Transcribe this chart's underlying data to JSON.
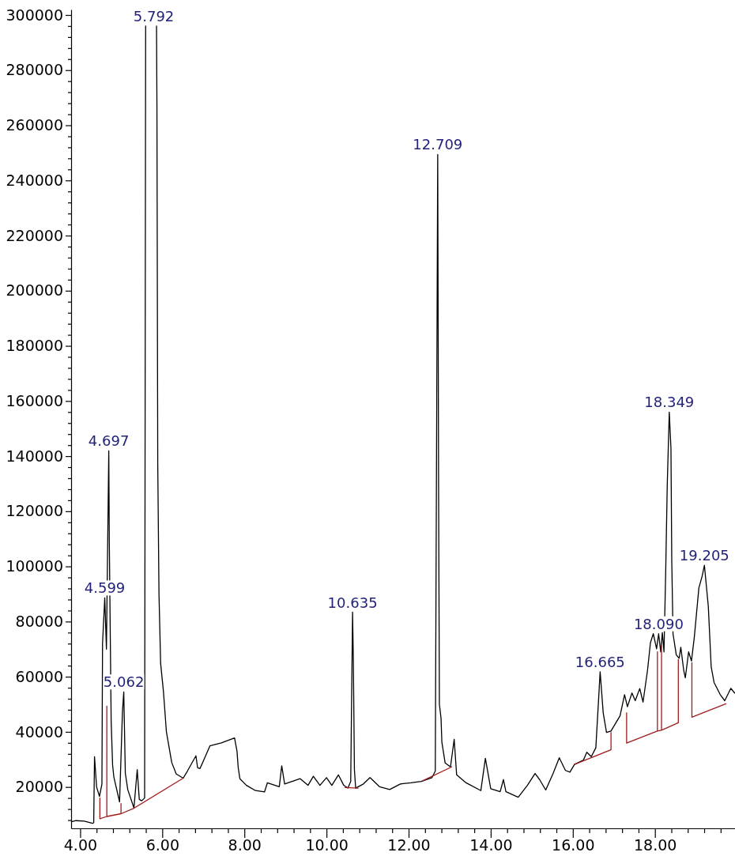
{
  "chart_data": {
    "type": "line",
    "xlim": [
      3.78,
      19.95
    ],
    "ylim": [
      5000,
      302000
    ],
    "xticks": [
      {
        "value": 4,
        "label": "4.00"
      },
      {
        "value": 4.4,
        "label": null
      },
      {
        "value": 4.8,
        "label": null
      },
      {
        "value": 5.2,
        "label": null
      },
      {
        "value": 5.6,
        "label": null
      },
      {
        "value": 6,
        "label": "6.00"
      },
      {
        "value": 6.4,
        "label": null
      },
      {
        "value": 6.8,
        "label": null
      },
      {
        "value": 7.2,
        "label": null
      },
      {
        "value": 7.6,
        "label": null
      },
      {
        "value": 8,
        "label": "8.00"
      },
      {
        "value": 8.4,
        "label": null
      },
      {
        "value": 8.8,
        "label": null
      },
      {
        "value": 9.2,
        "label": null
      },
      {
        "value": 9.6,
        "label": null
      },
      {
        "value": 10,
        "label": "10.00"
      },
      {
        "value": 10.4,
        "label": null
      },
      {
        "value": 10.8,
        "label": null
      },
      {
        "value": 11.2,
        "label": null
      },
      {
        "value": 11.6,
        "label": null
      },
      {
        "value": 12,
        "label": "12.00"
      },
      {
        "value": 12.4,
        "label": null
      },
      {
        "value": 12.8,
        "label": null
      },
      {
        "value": 13.2,
        "label": null
      },
      {
        "value": 13.6,
        "label": null
      },
      {
        "value": 14,
        "label": "14.00"
      },
      {
        "value": 14.4,
        "label": null
      },
      {
        "value": 14.8,
        "label": null
      },
      {
        "value": 15.2,
        "label": null
      },
      {
        "value": 15.6,
        "label": null
      },
      {
        "value": 16,
        "label": "16.00"
      },
      {
        "value": 16.4,
        "label": null
      },
      {
        "value": 16.8,
        "label": null
      },
      {
        "value": 17.2,
        "label": null
      },
      {
        "value": 17.6,
        "label": null
      },
      {
        "value": 18,
        "label": "18.00"
      },
      {
        "value": 18.4,
        "label": null
      },
      {
        "value": 18.8,
        "label": null
      },
      {
        "value": 19.2,
        "label": null
      },
      {
        "value": 19.6,
        "label": null
      }
    ],
    "yticks": [
      {
        "value": 8000,
        "label": null
      },
      {
        "value": 12000,
        "label": null
      },
      {
        "value": 16000,
        "label": null
      },
      20000,
      {
        "value": 24000,
        "label": null
      },
      {
        "value": 28000,
        "label": null
      },
      {
        "value": 32000,
        "label": null
      },
      {
        "value": 36000,
        "label": null
      },
      40000,
      {
        "value": 44000,
        "label": null
      },
      {
        "value": 48000,
        "label": null
      },
      {
        "value": 52000,
        "label": null
      },
      {
        "value": 56000,
        "label": null
      },
      60000,
      {
        "value": 64000,
        "label": null
      },
      {
        "value": 68000,
        "label": null
      },
      {
        "value": 72000,
        "label": null
      },
      {
        "value": 76000,
        "label": null
      },
      80000,
      {
        "value": 84000,
        "label": null
      },
      {
        "value": 88000,
        "label": null
      },
      {
        "value": 92000,
        "label": null
      },
      {
        "value": 96000,
        "label": null
      },
      100000,
      {
        "value": 104000,
        "label": null
      },
      {
        "value": 108000,
        "label": null
      },
      {
        "value": 112000,
        "label": null
      },
      {
        "value": 116000,
        "label": null
      },
      120000,
      {
        "value": 124000,
        "label": null
      },
      {
        "value": 128000,
        "label": null
      },
      {
        "value": 132000,
        "label": null
      },
      {
        "value": 136000,
        "label": null
      },
      140000,
      {
        "value": 144000,
        "label": null
      },
      {
        "value": 148000,
        "label": null
      },
      {
        "value": 152000,
        "label": null
      },
      {
        "value": 156000,
        "label": null
      },
      160000,
      {
        "value": 164000,
        "label": null
      },
      {
        "value": 168000,
        "label": null
      },
      {
        "value": 172000,
        "label": null
      },
      {
        "value": 176000,
        "label": null
      },
      180000,
      {
        "value": 184000,
        "label": null
      },
      {
        "value": 188000,
        "label": null
      },
      {
        "value": 192000,
        "label": null
      },
      {
        "value": 196000,
        "label": null
      },
      200000,
      {
        "value": 204000,
        "label": null
      },
      {
        "value": 208000,
        "label": null
      },
      {
        "value": 212000,
        "label": null
      },
      {
        "value": 216000,
        "label": null
      },
      220000,
      {
        "value": 224000,
        "label": null
      },
      {
        "value": 228000,
        "label": null
      },
      {
        "value": 232000,
        "label": null
      },
      {
        "value": 236000,
        "label": null
      },
      240000,
      {
        "value": 244000,
        "label": null
      },
      {
        "value": 248000,
        "label": null
      },
      {
        "value": 252000,
        "label": null
      },
      {
        "value": 256000,
        "label": null
      },
      260000,
      {
        "value": 264000,
        "label": null
      },
      {
        "value": 268000,
        "label": null
      },
      {
        "value": 272000,
        "label": null
      },
      {
        "value": 276000,
        "label": null
      },
      280000,
      {
        "value": 284000,
        "label": null
      },
      {
        "value": 288000,
        "label": null
      },
      {
        "value": 292000,
        "label": null
      },
      {
        "value": 296000,
        "label": null
      },
      300000
    ],
    "series": [
      {
        "color": "#000000",
        "x": [
          3.79,
          3.9,
          4.1,
          4.3,
          4.33,
          4.35,
          4.4,
          4.47,
          4.53,
          4.545,
          4.599,
          4.64,
          4.697,
          4.71,
          4.755,
          4.79,
          4.82,
          4.86,
          4.96,
          5.03,
          5.062,
          5.1,
          5.16,
          5.31,
          5.39,
          5.44,
          5.5,
          5.57,
          5.595,
          5.72,
          5.86,
          5.87,
          5.89,
          5.92,
          5.96,
          6.03,
          6.1,
          6.23,
          6.34,
          6.51,
          6.61,
          6.82,
          6.86,
          6.92,
          7.16,
          7.44,
          7.76,
          7.82,
          7.85,
          7.89,
          8.05,
          8.27,
          8.49,
          8.56,
          8.85,
          8.91,
          8.98,
          9.36,
          9.55,
          9.68,
          9.84,
          10,
          10.13,
          10.29,
          10.42,
          10.52,
          10.59,
          10.635,
          10.655,
          10.68,
          10.71,
          10.9,
          11.06,
          11.29,
          11.54,
          11.8,
          12.06,
          12.31,
          12.57,
          12.65,
          12.709,
          12.73,
          12.75,
          12.79,
          12.81,
          12.89,
          13.02,
          13.11,
          13.17,
          13.4,
          13.76,
          13.87,
          14,
          14.23,
          14.31,
          14.37,
          14.67,
          14.89,
          15.08,
          15.19,
          15.34,
          15.52,
          15.67,
          15.82,
          15.93,
          16.04,
          16.26,
          16.34,
          16.45,
          16.56,
          16.63,
          16.665,
          16.74,
          16.82,
          16.93,
          17.15,
          17.26,
          17.33,
          17.44,
          17.52,
          17.63,
          17.71,
          17.82,
          17.89,
          17.96,
          18.04,
          18.09,
          18.14,
          18.18,
          18.22,
          18.26,
          18.3,
          18.349,
          18.39,
          18.41,
          18.44,
          18.52,
          18.59,
          18.63,
          18.7,
          18.74,
          18.82,
          18.89,
          18.96,
          19.07,
          19.15,
          19.205,
          19.3,
          19.37,
          19.44,
          19.59,
          19.7,
          19.85,
          19.94
        ],
        "values": [
          7400,
          7800,
          7600,
          6800,
          7000,
          31000,
          20000,
          16600,
          21000,
          72000,
          88600,
          70000,
          141900,
          109000,
          44000,
          28000,
          23700,
          21000,
          14600,
          47200,
          54500,
          25000,
          19000,
          12400,
          26300,
          15500,
          15000,
          16000,
          296000,
          null,
          296000,
          266600,
          137000,
          90000,
          64800,
          54400,
          40100,
          28900,
          24700,
          23200,
          25700,
          31300,
          27000,
          26700,
          34900,
          36000,
          37800,
          33000,
          27000,
          23000,
          20600,
          18700,
          18200,
          21500,
          20100,
          27700,
          21100,
          23000,
          20600,
          23900,
          20600,
          23400,
          20600,
          24400,
          20600,
          19600,
          22000,
          83400,
          65000,
          26300,
          19600,
          21100,
          23400,
          20100,
          19100,
          21100,
          21500,
          22000,
          23400,
          25800,
          249400,
          130000,
          50000,
          44900,
          36300,
          28700,
          27300,
          37300,
          24400,
          21500,
          18700,
          30400,
          19400,
          18300,
          22700,
          18300,
          16300,
          20500,
          24900,
          22700,
          18900,
          24900,
          30600,
          26000,
          25400,
          28200,
          29800,
          32600,
          31000,
          34200,
          52400,
          61800,
          46900,
          39800,
          40300,
          45800,
          53500,
          49100,
          54100,
          51300,
          55700,
          50800,
          62400,
          72300,
          75600,
          70100,
          75600,
          69000,
          76000,
          69000,
          96500,
          129600,
          156000,
          142800,
          102000,
          75600,
          67900,
          66700,
          70700,
          62400,
          59600,
          69000,
          65700,
          74500,
          92200,
          96500,
          100400,
          85500,
          63600,
          57900,
          53500,
          51300,
          55800,
          54100
        ]
      },
      {
        "color": "#a01c1c",
        "x": [
          4.48,
          4.48,
          4.65,
          4.65,
          4.65,
          4.995,
          4.995,
          4.995,
          5.31,
          6.51,
          6.55,
          10.45,
          10.77,
          11.5,
          12.35,
          13.05,
          14.5,
          16.04,
          16.93,
          16.93,
          17,
          17.31,
          17.31,
          18.06,
          18.06,
          18.06,
          18.16,
          18.16,
          18.16,
          18.57,
          18.57,
          18.7,
          18.9,
          18.9,
          19.73
        ],
        "values": [
          16000,
          8500,
          9300,
          49300,
          9300,
          10300,
          14000,
          10300,
          12300,
          23200,
          null,
          19800,
          19600,
          null,
          22300,
          27300,
          null,
          28200,
          33500,
          39800,
          null,
          46900,
          35900,
          40300,
          69000,
          40300,
          40600,
          71200,
          40600,
          43300,
          66200,
          null,
          65100,
          45300,
          50200
        ]
      }
    ],
    "annotations": [
      {
        "text": "5.792",
        "x": 5.792,
        "y": 296000
      },
      {
        "text": "12.709",
        "x": 12.709,
        "y": 249400
      },
      {
        "text": "4.697",
        "x": 4.697,
        "y": 141900
      },
      {
        "text": "4.599",
        "x": 4.599,
        "y": 88600
      },
      {
        "text": "5.062",
        "x": 5.062,
        "y": 54500
      },
      {
        "text": "10.635",
        "x": 10.635,
        "y": 83400
      },
      {
        "text": "16.665",
        "x": 16.665,
        "y": 61800
      },
      {
        "text": "18.090",
        "x": 18.09,
        "y": 75600
      },
      {
        "text": "18.349",
        "x": 18.349,
        "y": 156000
      },
      {
        "text": "19.205",
        "x": 19.205,
        "y": 100400
      }
    ]
  }
}
